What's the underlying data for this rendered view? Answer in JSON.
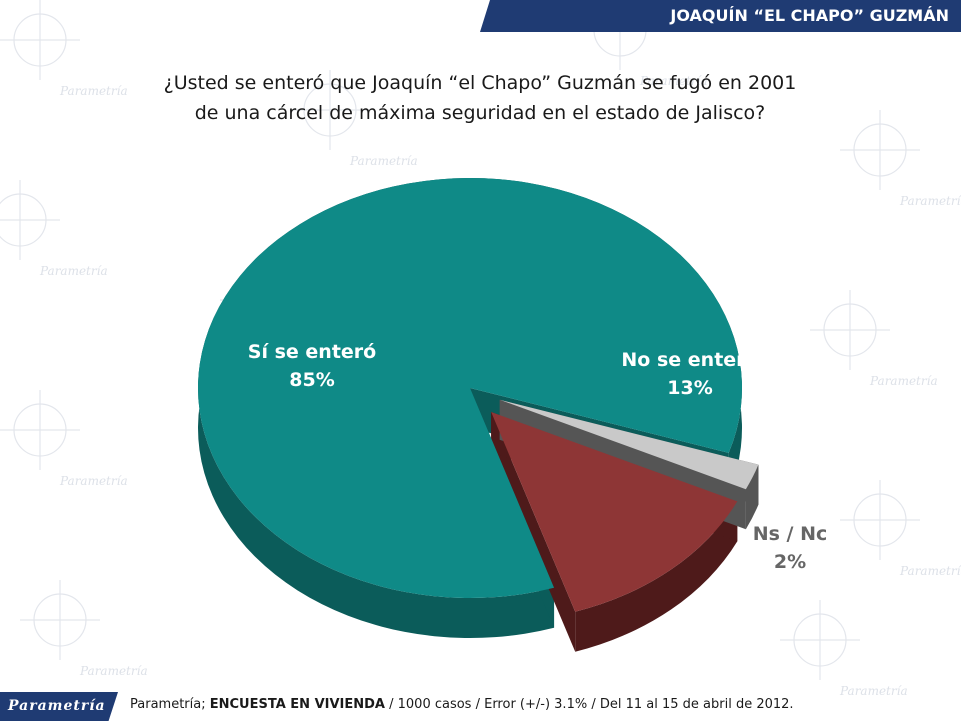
{
  "header": {
    "title": "JOAQUÍN “EL CHAPO” GUZMÁN"
  },
  "question": {
    "line1": "¿Usted se enteró que Joaquín “el Chapo” Guzmán se fugó en 2001",
    "line2": "de una cárcel de máxima seguridad en el estado de Jalisco?"
  },
  "chart_data": {
    "type": "pie",
    "title": "",
    "slices": [
      {
        "label": "Sí se enteró",
        "value": 85,
        "display": "85%",
        "color": "#0f8a87",
        "side_color": "#0b5c5a",
        "label_color": "#ffffff"
      },
      {
        "label": "No se enteró",
        "value": 13,
        "display": "13%",
        "color": "#8e3636",
        "side_color": "#4e1a1a",
        "label_color": "#ffffff"
      },
      {
        "label": "Ns / Nc",
        "value": 2,
        "display": "2%",
        "color": "#c9c9c9",
        "side_color": "#555555",
        "label_color": "#666666"
      }
    ]
  },
  "watermark": {
    "text": "Parametría"
  },
  "footer": {
    "logo": "Parametría",
    "source_prefix": "Parametría; ",
    "source_bold": "ENCUESTA EN VIVIENDA",
    "source_rest": " / 1000 casos / Error (+/-) 3.1% / Del 11 al 15 de abril de 2012."
  }
}
